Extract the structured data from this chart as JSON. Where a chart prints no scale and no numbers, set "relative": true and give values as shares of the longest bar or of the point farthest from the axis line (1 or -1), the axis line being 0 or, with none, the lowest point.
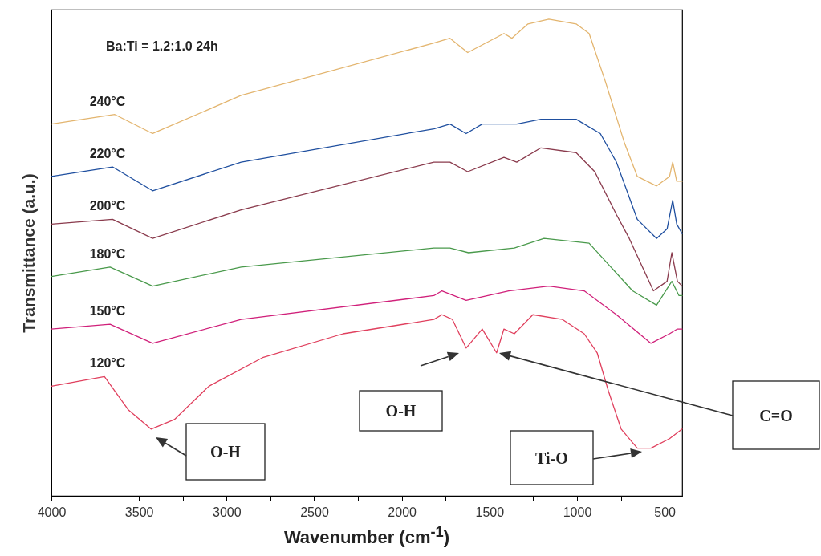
{
  "chart_data": {
    "type": "line",
    "relative": true,
    "xlabel": "Wavenumber (cm$^{-1}$)",
    "ylabel": "Transmittance (a.u.)",
    "xlim": [
      4000,
      400
    ],
    "xticks": [
      4000,
      {
        "value": 3750,
        "label": null
      },
      3500,
      {
        "value": 3250,
        "label": null
      },
      3000,
      {
        "value": 2750,
        "label": null
      },
      2500,
      {
        "value": 2250,
        "label": null
      },
      2000,
      {
        "value": 1750,
        "label": null
      },
      1500,
      {
        "value": 1250,
        "label": null
      },
      1000,
      {
        "value": 750,
        "label": null
      },
      500
    ],
    "annotations": [
      "Ba:Ti = 1.2:1.0 24h",
      "O-H",
      "O-H",
      "C=O",
      "Ti-O"
    ],
    "series": [
      {
        "name": "240°C",
        "color": "#e3b56f",
        "x": [
          4000,
          3638,
          3422,
          2917,
          1817,
          1725,
          1624,
          1417,
          1372,
          1280,
          1161,
          1005,
          931,
          839,
          729,
          656,
          546,
          472,
          454,
          431,
          400
        ],
        "values": [
          0.78,
          0.8,
          0.76,
          0.84,
          0.95,
          0.96,
          0.93,
          0.97,
          0.96,
          0.99,
          1,
          0.99,
          0.97,
          0.87,
          0.74,
          0.67,
          0.65,
          0.67,
          0.7,
          0.66,
          0.66
        ]
      },
      {
        "name": "220°C",
        "color": "#1f4f9f",
        "x": [
          4000,
          3651,
          3422,
          2917,
          1817,
          1725,
          1633,
          1541,
          1344,
          1206,
          1005,
          867,
          775,
          656,
          546,
          486,
          454,
          431,
          400
        ],
        "values": [
          0.67,
          0.69,
          0.64,
          0.7,
          0.77,
          0.78,
          0.76,
          0.78,
          0.78,
          0.79,
          0.79,
          0.76,
          0.7,
          0.58,
          0.54,
          0.56,
          0.62,
          0.57,
          0.55
        ]
      },
      {
        "name": "200°C",
        "color": "#8a3b4d",
        "x": [
          4000,
          3651,
          3422,
          2917,
          1817,
          1725,
          1624,
          1417,
          1344,
          1206,
          1005,
          899,
          775,
          702,
          564,
          486,
          459,
          427,
          400
        ],
        "values": [
          0.57,
          0.58,
          0.54,
          0.6,
          0.7,
          0.7,
          0.68,
          0.71,
          0.7,
          0.73,
          0.72,
          0.68,
          0.59,
          0.54,
          0.43,
          0.45,
          0.51,
          0.45,
          0.44
        ]
      },
      {
        "name": "180°C",
        "color": "#4a9a4c",
        "x": [
          4000,
          3665,
          3422,
          2917,
          1817,
          1725,
          1619,
          1358,
          1188,
          931,
          807,
          683,
          546,
          459,
          418,
          400
        ],
        "values": [
          0.46,
          0.48,
          0.44,
          0.48,
          0.52,
          0.52,
          0.51,
          0.52,
          0.54,
          0.53,
          0.48,
          0.43,
          0.4,
          0.45,
          0.42,
          0.42
        ]
      },
      {
        "name": "150°C",
        "color": "#d0207a",
        "x": [
          4000,
          3665,
          3422,
          2917,
          1817,
          1771,
          1633,
          1390,
          1161,
          959,
          775,
          578,
          472,
          427,
          400
        ],
        "values": [
          0.35,
          0.36,
          0.32,
          0.37,
          0.42,
          0.43,
          0.41,
          0.43,
          0.44,
          0.43,
          0.38,
          0.32,
          0.34,
          0.35,
          0.35
        ]
      },
      {
        "name": "120°C",
        "color": "#e0405e",
        "x": [
          4000,
          3697,
          3560,
          3431,
          3298,
          3101,
          2794,
          2335,
          1817,
          1771,
          1711,
          1633,
          1541,
          1459,
          1417,
          1358,
          1252,
          1083,
          959,
          885,
          821,
          748,
          656,
          578,
          472,
          400
        ],
        "values": [
          0.23,
          0.25,
          0.18,
          0.14,
          0.16,
          0.23,
          0.29,
          0.34,
          0.37,
          0.38,
          0.37,
          0.31,
          0.35,
          0.3,
          0.35,
          0.34,
          0.38,
          0.37,
          0.34,
          0.3,
          0.22,
          0.14,
          0.1,
          0.1,
          0.12,
          0.14
        ]
      }
    ]
  }
}
